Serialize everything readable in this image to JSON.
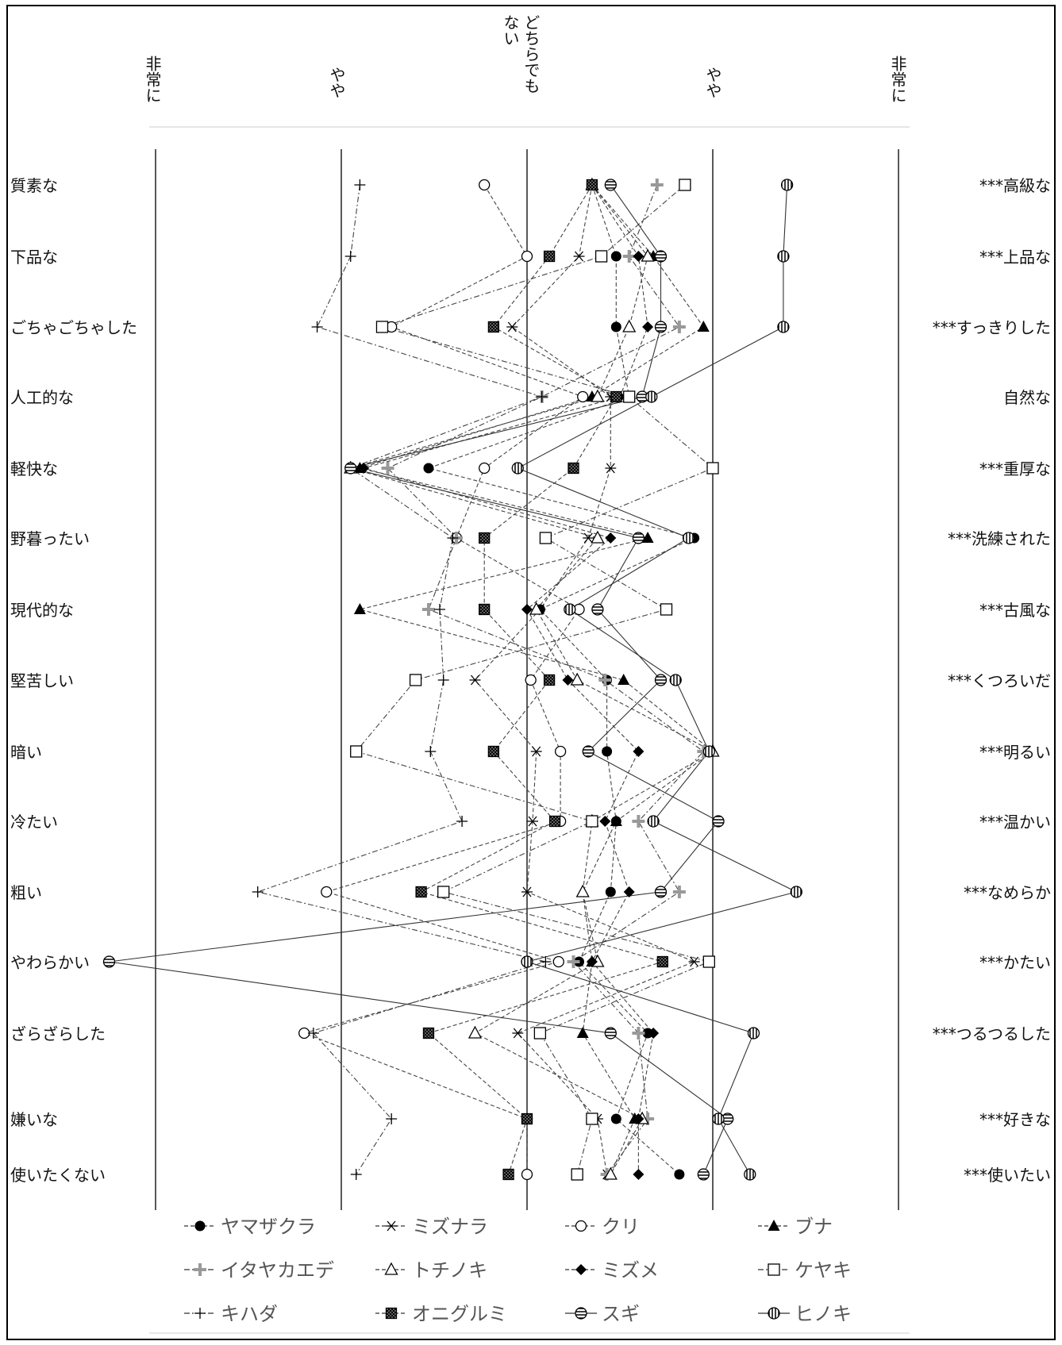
{
  "scale_headers": {
    "very_left": "非常に",
    "slightly_left": "やや",
    "neutral_line1": "どちらでも",
    "neutral_line2": "ない",
    "slightly_right": "やや",
    "very_right": "非常に"
  },
  "chart_data": {
    "type": "line",
    "orientation": "horizontal-profile",
    "xlim": [
      -2,
      2
    ],
    "left_labels": [
      "質素な",
      "下品な",
      "ごちゃごちゃした",
      "人工的な",
      "軽快な",
      "野暮ったい",
      "現代的な",
      "堅苦しい",
      "暗い",
      "冷たい",
      "粗い",
      "やわらかい",
      "ざらざらした",
      "嫌いな",
      "使いたくない"
    ],
    "right_labels": [
      "***高級な",
      "***上品な",
      "***すっきりした",
      "自然な",
      "***重厚な",
      "***洗練された",
      "***古風な",
      "***くつろいだ",
      "***明るい",
      "***温かい",
      "***なめらか",
      "***かたい",
      "***つるつるした",
      "***好きな",
      "***使いたい"
    ],
    "series": [
      {
        "name": "ヤマザクラ",
        "marker": "filled-circle",
        "line": "dashed",
        "values": [
          0.35,
          0.48,
          0.48,
          0.55,
          -0.53,
          0.9,
          0.07,
          0.43,
          0.43,
          0.48,
          0.45,
          0.28,
          0.65,
          0.48,
          0.82
        ]
      },
      {
        "name": "ミズナラ",
        "marker": "asterisk",
        "line": "dashed",
        "values": [
          0.35,
          0.28,
          -0.08,
          0.45,
          0.45,
          0.33,
          0.07,
          -0.28,
          0.05,
          0.03,
          0.0,
          0.9,
          -0.05,
          0.38,
          0.43
        ]
      },
      {
        "name": "クリ",
        "marker": "open-circle",
        "line": "dashed",
        "values": [
          -0.23,
          0.0,
          -0.73,
          0.3,
          -0.23,
          -0.38,
          0.28,
          0.02,
          0.18,
          0.18,
          -1.08,
          0.17,
          -1.2,
          0.0,
          0.0
        ]
      },
      {
        "name": "ブナ",
        "marker": "filled-triangle",
        "line": "dashed",
        "values": [
          0.35,
          0.68,
          0.95,
          0.35,
          -0.9,
          0.65,
          -0.9,
          0.52,
          1.0,
          0.48,
          0.3,
          0.35,
          0.3,
          0.58,
          0.45
        ]
      },
      {
        "name": "イタヤカエデ",
        "marker": "gray-plus",
        "line": "dash-dot",
        "values": [
          0.7,
          0.55,
          0.82,
          0.08,
          -0.75,
          -0.38,
          -0.53,
          0.42,
          0.95,
          0.6,
          0.82,
          0.25,
          0.6,
          0.65,
          0.43
        ]
      },
      {
        "name": "トチノキ",
        "marker": "open-triangle",
        "line": "dashed",
        "values": [
          0.35,
          0.65,
          0.55,
          0.38,
          -0.95,
          0.38,
          0.05,
          0.27,
          1.0,
          0.35,
          0.3,
          0.38,
          -0.28,
          0.62,
          0.45
        ]
      },
      {
        "name": "ミズメ",
        "marker": "filled-diamond",
        "line": "dashed",
        "values": [
          0.35,
          0.6,
          0.65,
          0.5,
          -0.88,
          0.45,
          0.0,
          0.22,
          0.6,
          0.42,
          0.55,
          0.35,
          0.68,
          0.6,
          0.6
        ]
      },
      {
        "name": "ケヤキ",
        "marker": "open-square",
        "line": "dash-dot",
        "values": [
          0.85,
          0.4,
          -0.78,
          0.55,
          1.0,
          0.1,
          0.75,
          -0.6,
          -0.92,
          0.35,
          -0.45,
          0.98,
          0.07,
          0.35,
          0.27
        ]
      },
      {
        "name": "キハダ",
        "marker": "plus",
        "line": "dash-dot",
        "values": [
          -0.9,
          -0.95,
          -1.13,
          0.08,
          -0.95,
          -0.4,
          -0.47,
          -0.45,
          -0.52,
          -0.35,
          -1.45,
          0.1,
          -1.15,
          -0.73,
          -0.92
        ]
      },
      {
        "name": "オニグルミ",
        "marker": "hatched-square",
        "line": "dashed",
        "values": [
          0.35,
          0.12,
          -0.18,
          0.48,
          0.25,
          -0.23,
          -0.23,
          0.12,
          -0.18,
          0.15,
          -0.57,
          0.73,
          -0.53,
          0.0,
          -0.1
        ]
      },
      {
        "name": "スギ",
        "marker": "striped-circle",
        "line": "solid",
        "values": [
          0.45,
          0.72,
          0.72,
          0.62,
          -0.95,
          0.6,
          0.38,
          0.72,
          0.33,
          1.03,
          0.72,
          -2.25,
          0.45,
          1.08,
          0.95
        ]
      },
      {
        "name": "ヒノキ",
        "marker": "barred-circle",
        "line": "solid",
        "values": [
          1.4,
          1.38,
          1.38,
          0.67,
          -0.05,
          0.87,
          0.23,
          0.8,
          0.98,
          0.68,
          1.45,
          0.0,
          1.22,
          1.03,
          1.2
        ]
      }
    ]
  }
}
